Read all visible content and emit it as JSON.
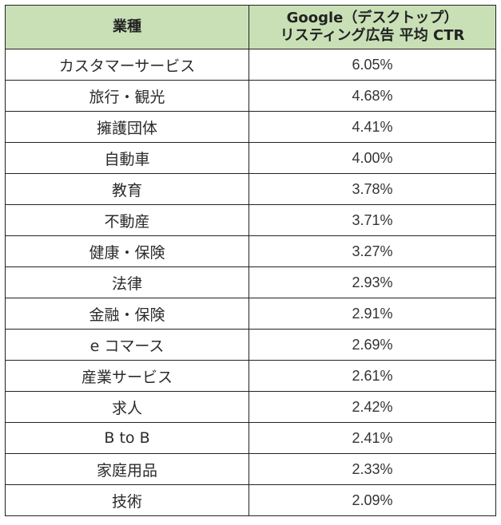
{
  "header": {
    "col_industry": "業種",
    "col_ctr_line1": "Google（デスクトップ）",
    "col_ctr_line2": "リスティング広告 平均 CTR"
  },
  "rows": [
    {
      "industry": "カスタマーサービス",
      "ctr": "6.05%"
    },
    {
      "industry": "旅行・観光",
      "ctr": "4.68%"
    },
    {
      "industry": "擁護団体",
      "ctr": "4.41%"
    },
    {
      "industry": "自動車",
      "ctr": "4.00%"
    },
    {
      "industry": "教育",
      "ctr": "3.78%"
    },
    {
      "industry": "不動産",
      "ctr": "3.71%"
    },
    {
      "industry": "健康・保険",
      "ctr": "3.27%"
    },
    {
      "industry": "法律",
      "ctr": "2.93%"
    },
    {
      "industry": "金融・保険",
      "ctr": "2.91%"
    },
    {
      "industry": "e コマース",
      "ctr": "2.69%"
    },
    {
      "industry": "産業サービス",
      "ctr": "2.61%"
    },
    {
      "industry": "求人",
      "ctr": "2.42%"
    },
    {
      "industry": "B to B",
      "ctr": "2.41%"
    },
    {
      "industry": "家庭用品",
      "ctr": "2.33%"
    },
    {
      "industry": "技術",
      "ctr": "2.09%"
    }
  ],
  "colors": {
    "header_bg": "#c9e0b6",
    "border": "#222222"
  }
}
